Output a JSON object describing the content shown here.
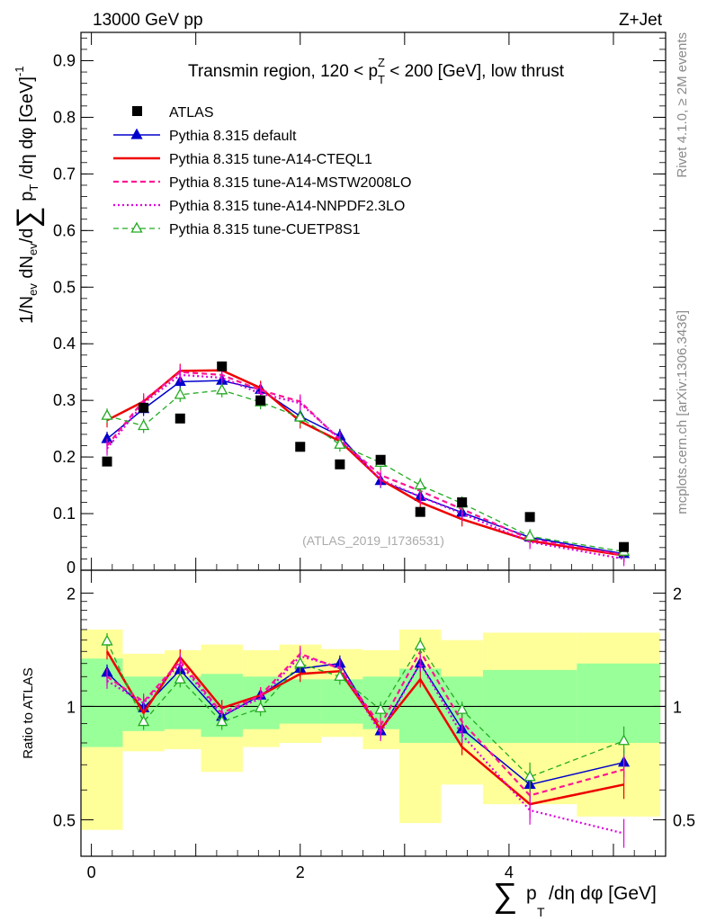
{
  "header": {
    "left": "13000 GeV pp",
    "right": "Z+Jet"
  },
  "side_labels": {
    "rivet": "Rivet 4.1.0, ≥ 2M events",
    "mcplots": "mcplots.cern.ch [arXiv:1306.3436]"
  },
  "watermark": "(ATLAS_2019_I1736531)",
  "chart_data": [
    {
      "type": "scatter",
      "title": "Transmin region, 120 < pTZ < 200 [GeV], low thrust",
      "title_parts": {
        "pre": "Transmin region, 120 < p",
        "sub": "T",
        "sup": "Z",
        "post": " < 200 [GeV], low thrust"
      },
      "ylabel": "1/Nev dNev/d∑ pT /dη dφ [GeV]^-1",
      "ylim": [
        0,
        0.95
      ],
      "yticks": [
        0.1,
        0.2,
        0.3,
        0.4,
        0.5,
        0.6,
        0.7,
        0.8,
        0.9
      ],
      "ytick_labels": [
        "0.1",
        "0.2",
        "0.3",
        "0.4",
        "0.5",
        "0.6",
        "0.7",
        "0.8",
        "0.9"
      ],
      "ytick_zero_label": "0",
      "xlim": [
        -0.1,
        5.5
      ],
      "x": [
        0.15,
        0.5,
        0.85,
        1.25,
        1.62,
        2.0,
        2.38,
        2.77,
        3.15,
        3.55,
        4.2,
        5.1
      ],
      "legend": [
        "ATLAS",
        "Pythia 8.315 default",
        "Pythia 8.315 tune-A14-CTEQL1",
        "Pythia 8.315 tune-A14-MSTW2008LO",
        "Pythia 8.315 tune-A14-NNPDF2.3LO",
        "Pythia 8.315 tune-CUETP8S1"
      ],
      "series": [
        {
          "name": "ATLAS",
          "color": "#000000",
          "values": [
            0.192,
            0.287,
            0.268,
            0.36,
            0.3,
            0.218,
            0.187,
            0.195,
            0.103,
            0.12,
            0.094,
            0.041
          ]
        },
        {
          "name": "Pythia 8.315 default",
          "color": "#0000cc",
          "values": [
            0.232,
            0.285,
            0.333,
            0.335,
            0.319,
            0.272,
            0.237,
            0.158,
            0.13,
            0.102,
            0.058,
            0.029
          ]
        },
        {
          "name": "Pythia 8.315 tune-A14-CTEQL1",
          "color": "#ee0000",
          "values": [
            0.265,
            0.298,
            0.352,
            0.353,
            0.322,
            0.263,
            0.228,
            0.16,
            0.12,
            0.09,
            0.052,
            0.026
          ]
        },
        {
          "name": "Pythia 8.315 tune-A14-MSTW2008LO",
          "color": "#ff1493",
          "values": [
            0.22,
            0.3,
            0.35,
            0.345,
            0.318,
            0.298,
            0.23,
            0.168,
            0.14,
            0.108,
            0.055,
            0.027
          ]
        },
        {
          "name": "Pythia 8.315 tune-A14-NNPDF2.3LO",
          "color": "#dd00dd",
          "values": [
            0.215,
            0.295,
            0.345,
            0.34,
            0.312,
            0.295,
            0.232,
            0.16,
            0.13,
            0.1,
            0.05,
            0.02
          ]
        },
        {
          "name": "Pythia 8.315 tune-CUETP8S1",
          "color": "#22aa22",
          "values": [
            0.273,
            0.255,
            0.31,
            0.318,
            0.297,
            0.27,
            0.222,
            0.19,
            0.15,
            0.118,
            0.06,
            0.033
          ]
        }
      ]
    },
    {
      "type": "line",
      "ylabel": "Ratio to ATLAS",
      "xlabel": "∑ pT /dη dφ [GeV]",
      "xlim": [
        -0.1,
        5.5
      ],
      "ylim": [
        0.4,
        2.3
      ],
      "yticks": [
        0.5,
        1,
        2
      ],
      "ytick_labels": [
        "0.5",
        "1",
        "2"
      ],
      "xticks": [
        0,
        2,
        4
      ],
      "xtick_labels": [
        "0",
        "2",
        "4"
      ],
      "bins": [
        -0.1,
        0.3,
        0.7,
        1.05,
        1.45,
        1.8,
        2.2,
        2.6,
        2.95,
        3.35,
        3.75,
        4.65,
        5.45
      ],
      "band_green_low": [
        0.78,
        0.86,
        0.87,
        0.83,
        0.87,
        0.9,
        0.9,
        0.87,
        0.8,
        0.8,
        0.8,
        0.8
      ],
      "band_green_high": [
        1.34,
        1.2,
        1.2,
        1.22,
        1.2,
        1.18,
        1.18,
        1.2,
        1.26,
        1.2,
        1.25,
        1.3
      ],
      "band_yellow_low": [
        0.47,
        0.76,
        0.77,
        0.67,
        0.78,
        0.8,
        0.83,
        0.77,
        0.49,
        0.62,
        0.55,
        0.51
      ],
      "band_yellow_high": [
        1.6,
        1.38,
        1.41,
        1.46,
        1.41,
        1.46,
        1.42,
        1.41,
        1.6,
        1.5,
        1.57,
        1.57
      ],
      "x": [
        0.15,
        0.5,
        0.85,
        1.25,
        1.62,
        2.0,
        2.38,
        2.77,
        3.15,
        3.55,
        4.2,
        5.1
      ],
      "series": [
        {
          "name": "Pythia 8.315 default",
          "color": "#0000cc",
          "values": [
            1.23,
            0.99,
            1.25,
            0.94,
            1.07,
            1.26,
            1.3,
            0.86,
            1.3,
            0.87,
            0.62,
            0.71
          ]
        },
        {
          "name": "Pythia 8.315 tune-A14-CTEQL1",
          "color": "#ee0000",
          "values": [
            1.4,
            0.96,
            1.35,
            0.99,
            1.07,
            1.22,
            1.24,
            0.87,
            1.18,
            0.78,
            0.55,
            0.62
          ]
        },
        {
          "name": "Pythia 8.315 tune-A14-MSTW2008LO",
          "color": "#ff1493",
          "values": [
            1.2,
            1.03,
            1.32,
            0.96,
            1.07,
            1.38,
            1.26,
            0.89,
            1.4,
            0.91,
            0.58,
            0.68
          ]
        },
        {
          "name": "Pythia 8.315 tune-A14-NNPDF2.3LO",
          "color": "#dd00dd",
          "values": [
            1.17,
            1.02,
            1.3,
            0.95,
            1.05,
            1.36,
            1.27,
            0.85,
            1.3,
            0.84,
            0.53,
            0.46
          ]
        },
        {
          "name": "Pythia 8.315 tune-CUETP8S1",
          "color": "#22aa22",
          "values": [
            1.49,
            0.91,
            1.18,
            0.91,
            0.99,
            1.3,
            1.2,
            0.98,
            1.45,
            0.98,
            0.65,
            0.81
          ]
        }
      ]
    }
  ]
}
